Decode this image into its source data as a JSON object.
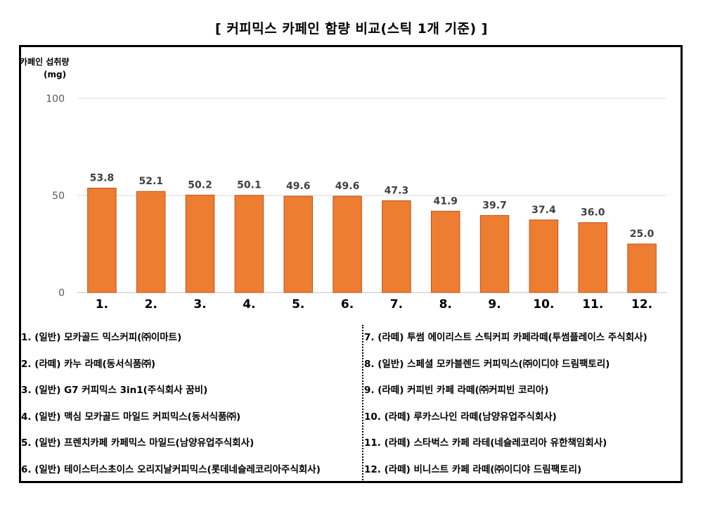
{
  "title": "[ 커피믹스 카페인 함량 비교(스틱 1개 기준) ]",
  "y_axis": {
    "label": "카페인 섭취량",
    "unit": "(mg)"
  },
  "colors": {
    "bar": "#ED7D31",
    "bar_stroke": "#C0511A",
    "grid": "#D9D9D9",
    "axis": "#BFBFBF"
  },
  "chart_data": {
    "type": "bar",
    "title": "[ 커피믹스 카페인 함량 비교(스틱 1개 기준) ]",
    "ylabel": "카페인 섭취량 (mg)",
    "xlabel": "",
    "ylim": [
      0,
      100
    ],
    "yticks": [
      0,
      50,
      100
    ],
    "categories": [
      "1.",
      "2.",
      "3.",
      "4.",
      "5.",
      "6.",
      "7.",
      "8.",
      "9.",
      "10.",
      "11.",
      "12."
    ],
    "values": [
      53.8,
      52.1,
      50.2,
      50.1,
      49.6,
      49.6,
      47.3,
      41.9,
      39.7,
      37.4,
      36.0,
      25.0
    ],
    "value_labels": [
      "53.8",
      "52.1",
      "50.2",
      "50.1",
      "49.6",
      "49.6",
      "47.3",
      "41.9",
      "39.7",
      "37.4",
      "36.0",
      "25.0"
    ],
    "grid": true
  },
  "legend": {
    "left": [
      "1. (일반) 모카골드 믹스커피(㈜이마트)",
      "2. (라떼) 카누 라떼(동서식품㈜)",
      "3. (일반) G7 커피믹스 3in1(주식회사 꿈비)",
      "4. (일반) 맥심 모카골드 마일드 커피믹스(동서식품㈜)",
      "5. (일반) 프렌치카페 카페믹스 마일드(남양유업주식회사)",
      "6. (일반) 테이스터스초이스 오리지날커피믹스(롯데네슬레코리아주식회사)"
    ],
    "right": [
      "7. (라떼) 투썸 에이리스트 스틱커피 카페라떼(투썸플레이스 주식회사)",
      "8. (일반) 스페셜 모카블렌드 커피믹스(㈜이디야 드림팩토리)",
      "9. (라떼) 커피빈 카페 라떼(㈜커피빈 코리아)",
      "10. (라떼) 루카스나인 라떼(남양유업주식회사)",
      "11. (라떼) 스타벅스 카페 라테(네슬레코리아 유한책임회사)",
      "12. (라떼) 비니스트 카페 라떼(㈜이디야 드림팩토리)"
    ]
  }
}
